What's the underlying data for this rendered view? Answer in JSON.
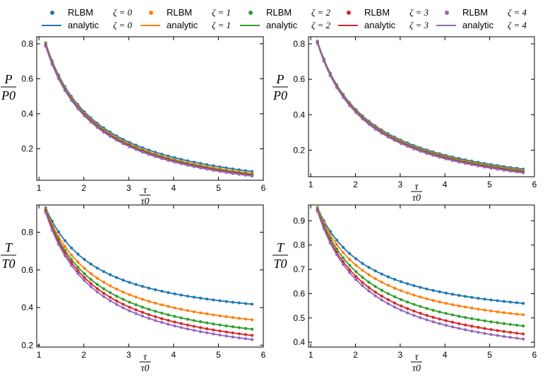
{
  "legend": {
    "entries": [
      {
        "marker_label": "RLBM",
        "marker_math": "ζ = 0",
        "line_label": "analytic",
        "line_math": "ζ = 0",
        "color": "#1f77b4"
      },
      {
        "marker_label": "RLBM",
        "marker_math": "ζ = 1",
        "line_label": "analytic",
        "line_math": "ζ = 1",
        "color": "#ff7f0e"
      },
      {
        "marker_label": "RLBM",
        "marker_math": "ζ = 2",
        "line_label": "analytic",
        "line_math": "ζ = 2",
        "color": "#2ca02c"
      },
      {
        "marker_label": "RLBM",
        "marker_math": "ζ = 3",
        "line_label": "analytic",
        "line_math": "ζ = 3",
        "color": "#d62728"
      },
      {
        "marker_label": "RLBM",
        "marker_math": "ζ = 4",
        "line_label": "analytic",
        "line_math": "ζ = 4",
        "color": "#9467bd"
      }
    ]
  },
  "chart_data": [
    {
      "type": "line",
      "panel": "top-left",
      "ylabel_num": "P",
      "ylabel_den": "P0",
      "xlabel_num": "τ",
      "xlabel_den": "τ0",
      "xlim": [
        0.95,
        6.0
      ],
      "ylim": [
        0.02,
        0.84
      ],
      "xticks": [
        1,
        2,
        3,
        4,
        5,
        6
      ],
      "yticks": [
        0.2,
        0.4,
        0.6,
        0.8
      ],
      "x_range": [
        1.15,
        5.75
      ],
      "series": [
        {
          "name": "ζ = 0",
          "color": "#1f77b4",
          "y_start": 0.805,
          "y_end": 0.07
        },
        {
          "name": "ζ = 1",
          "color": "#ff7f0e",
          "y_start": 0.8,
          "y_end": 0.059
        },
        {
          "name": "ζ = 2",
          "color": "#2ca02c",
          "y_start": 0.795,
          "y_end": 0.053
        },
        {
          "name": "ζ = 3",
          "color": "#d62728",
          "y_start": 0.79,
          "y_end": 0.048
        },
        {
          "name": "ζ = 4",
          "color": "#9467bd",
          "y_start": 0.785,
          "y_end": 0.044
        }
      ]
    },
    {
      "type": "line",
      "panel": "top-right",
      "ylabel_num": "P",
      "ylabel_den": "P0",
      "xlabel_num": "τ",
      "xlabel_den": "τ0",
      "xlim": [
        0.95,
        6.0
      ],
      "ylim": [
        0.05,
        0.84
      ],
      "xticks": [
        1,
        2,
        3,
        4,
        5,
        6
      ],
      "yticks": [
        0.2,
        0.4,
        0.6,
        0.8
      ],
      "x_range": [
        1.15,
        5.75
      ],
      "series": [
        {
          "name": "ζ = 0",
          "color": "#1f77b4",
          "y_start": 0.815,
          "y_end": 0.093
        },
        {
          "name": "ζ = 1",
          "color": "#ff7f0e",
          "y_start": 0.812,
          "y_end": 0.086
        },
        {
          "name": "ζ = 2",
          "color": "#2ca02c",
          "y_start": 0.809,
          "y_end": 0.081
        },
        {
          "name": "ζ = 3",
          "color": "#d62728",
          "y_start": 0.806,
          "y_end": 0.076
        },
        {
          "name": "ζ = 4",
          "color": "#9467bd",
          "y_start": 0.803,
          "y_end": 0.072
        }
      ]
    },
    {
      "type": "line",
      "panel": "bottom-left",
      "ylabel_num": "T",
      "ylabel_den": "T0",
      "xlabel_num": "τ",
      "xlabel_den": "τ0",
      "xlim": [
        0.95,
        6.0
      ],
      "ylim": [
        0.19,
        0.945
      ],
      "xticks": [
        1,
        2,
        3,
        4,
        5,
        6
      ],
      "yticks": [
        0.2,
        0.4,
        0.6,
        0.8
      ],
      "x_range": [
        1.15,
        5.75
      ],
      "series": [
        {
          "name": "ζ = 0",
          "color": "#1f77b4",
          "y_start": 0.93,
          "y_end": 0.418
        },
        {
          "name": "ζ = 1",
          "color": "#ff7f0e",
          "y_start": 0.925,
          "y_end": 0.335
        },
        {
          "name": "ζ = 2",
          "color": "#2ca02c",
          "y_start": 0.92,
          "y_end": 0.285
        },
        {
          "name": "ζ = 3",
          "color": "#d62728",
          "y_start": 0.915,
          "y_end": 0.252
        },
        {
          "name": "ζ = 4",
          "color": "#9467bd",
          "y_start": 0.905,
          "y_end": 0.23
        }
      ]
    },
    {
      "type": "line",
      "panel": "bottom-right",
      "ylabel_num": "T",
      "ylabel_den": "T0",
      "xlabel_num": "τ",
      "xlabel_den": "τ0",
      "xlim": [
        0.95,
        6.0
      ],
      "ylim": [
        0.38,
        0.965
      ],
      "xticks": [
        1,
        2,
        3,
        4,
        5,
        6
      ],
      "yticks": [
        0.4,
        0.5,
        0.6,
        0.7,
        0.8,
        0.9
      ],
      "x_range": [
        1.15,
        5.75
      ],
      "series": [
        {
          "name": "ζ = 0",
          "color": "#1f77b4",
          "y_start": 0.955,
          "y_end": 0.56
        },
        {
          "name": "ζ = 1",
          "color": "#ff7f0e",
          "y_start": 0.952,
          "y_end": 0.513
        },
        {
          "name": "ζ = 2",
          "color": "#2ca02c",
          "y_start": 0.948,
          "y_end": 0.467
        },
        {
          "name": "ζ = 3",
          "color": "#d62728",
          "y_start": 0.944,
          "y_end": 0.434
        },
        {
          "name": "ζ = 4",
          "color": "#9467bd",
          "y_start": 0.94,
          "y_end": 0.413
        }
      ]
    }
  ]
}
